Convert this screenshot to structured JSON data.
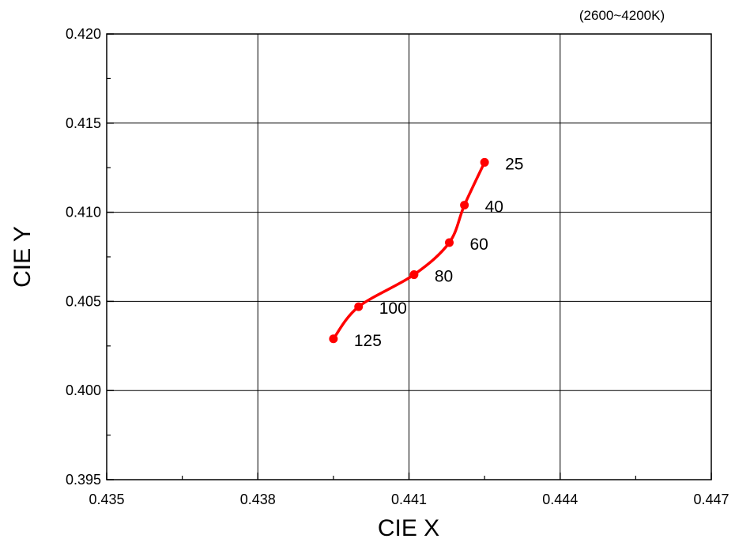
{
  "chart_data": {
    "type": "line",
    "title": "",
    "annotation": "(2600~4200K)",
    "xlabel": "CIE X",
    "ylabel": "CIE Y",
    "xlim": [
      0.435,
      0.447
    ],
    "ylim": [
      0.395,
      0.42
    ],
    "x_ticks": [
      "0.435",
      "0.438",
      "0.441",
      "0.444",
      "0.447"
    ],
    "y_ticks": [
      "0.395",
      "0.400",
      "0.405",
      "0.410",
      "0.415",
      "0.420"
    ],
    "grid": true,
    "series": [
      {
        "color": "#ff0000",
        "points": [
          {
            "x": 0.4425,
            "y": 0.4128,
            "label": "25"
          },
          {
            "x": 0.4421,
            "y": 0.4104,
            "label": "40"
          },
          {
            "x": 0.4418,
            "y": 0.4083,
            "label": "60"
          },
          {
            "x": 0.4411,
            "y": 0.4065,
            "label": "80"
          },
          {
            "x": 0.44,
            "y": 0.4047,
            "label": "100"
          },
          {
            "x": 0.4395,
            "y": 0.4029,
            "label": "125"
          }
        ]
      }
    ]
  }
}
